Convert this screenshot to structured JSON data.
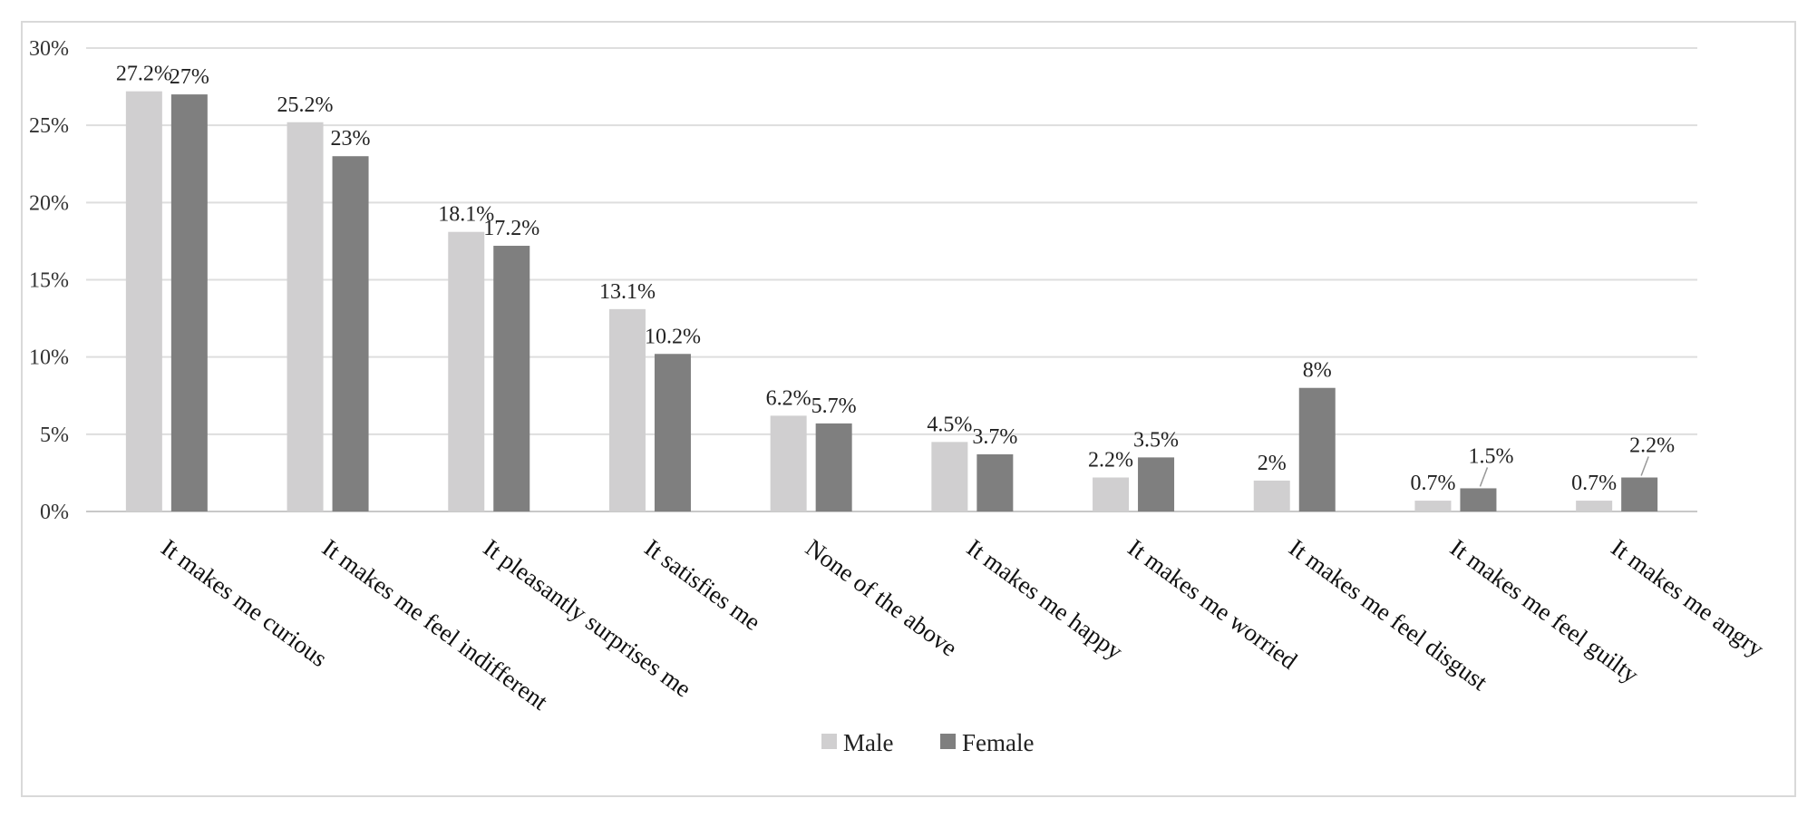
{
  "chart_data": {
    "type": "bar",
    "title": "",
    "xlabel": "",
    "ylabel": "",
    "ylim": [
      0,
      30
    ],
    "yticks": [
      0,
      5,
      10,
      15,
      20,
      25,
      30
    ],
    "ytick_labels": [
      "0%",
      "5%",
      "10%",
      "15%",
      "20%",
      "25%",
      "30%"
    ],
    "grid": true,
    "legend_position": "bottom",
    "categories": [
      "It makes me curious",
      "It makes me feel indifferent",
      "It pleasantly surprises me",
      "It satisfies me",
      "None of the above",
      "It makes me happy",
      "It makes me worried",
      "It makes me feel disgust",
      "It makes me feel guilty",
      "It makes me angry"
    ],
    "series": [
      {
        "name": "Male",
        "color": "#d0cfd0",
        "values": [
          27.2,
          25.2,
          18.1,
          13.1,
          6.2,
          4.5,
          2.2,
          2.0,
          0.7,
          0.7
        ],
        "labels": [
          "27.2%",
          "25.2%",
          "18.1%",
          "13.1%",
          "6.2%",
          "4.5%",
          "2.2%",
          "2%",
          "0.7%",
          "0.7%"
        ]
      },
      {
        "name": "Female",
        "color": "#7f7f7f",
        "values": [
          27.0,
          23.0,
          17.2,
          10.2,
          5.7,
          3.7,
          3.5,
          8.0,
          1.5,
          2.2
        ],
        "labels": [
          "27%",
          "23%",
          "17.2%",
          "10.2%",
          "5.7%",
          "3.7%",
          "3.5%",
          "8%",
          "1.5%",
          "2.2%"
        ]
      }
    ]
  }
}
